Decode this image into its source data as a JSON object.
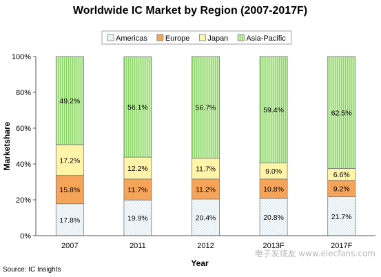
{
  "chart_data": {
    "type": "bar",
    "stacked": true,
    "title": "Worldwide IC Market by Region (2007-2017F)",
    "xlabel": "Year",
    "ylabel": "Marketshare",
    "ylim": [
      0,
      100
    ],
    "yticks": [
      "0%",
      "20%",
      "40%",
      "60%",
      "80%",
      "100%"
    ],
    "categories": [
      "2007",
      "2011",
      "2012",
      "2013F",
      "2017F"
    ],
    "series": [
      {
        "name": "Americas",
        "values": [
          17.8,
          19.9,
          20.4,
          20.8,
          21.7
        ],
        "labels": [
          "17.8%",
          "19.9%",
          "20.4%",
          "20.8%",
          "21.7%"
        ],
        "color": "#ffffff",
        "pattern": "dotted-blue"
      },
      {
        "name": "Europe",
        "values": [
          15.8,
          11.7,
          11.2,
          10.8,
          9.2
        ],
        "labels": [
          "15.8%",
          "11.7%",
          "11.2%",
          "10.8%",
          "9.2%"
        ],
        "color": "#f5a45a"
      },
      {
        "name": "Japan",
        "values": [
          17.2,
          12.2,
          11.7,
          9.0,
          6.6
        ],
        "labels": [
          "17.2%",
          "12.2%",
          "11.7%",
          "9.0%",
          "6.6%"
        ],
        "color": "#fff4a8"
      },
      {
        "name": "Asia-Pacific",
        "values": [
          49.2,
          56.1,
          56.7,
          59.4,
          62.5
        ],
        "labels": [
          "49.2%",
          "56.1%",
          "56.7%",
          "59.4%",
          "62.5%"
        ],
        "color": "#b8ea9c",
        "pattern": "striped-green"
      }
    ],
    "legend_position": "top",
    "grid": false
  },
  "source": "Source: IC Insights",
  "watermark": "电子发烧友 www.elecfans.com"
}
